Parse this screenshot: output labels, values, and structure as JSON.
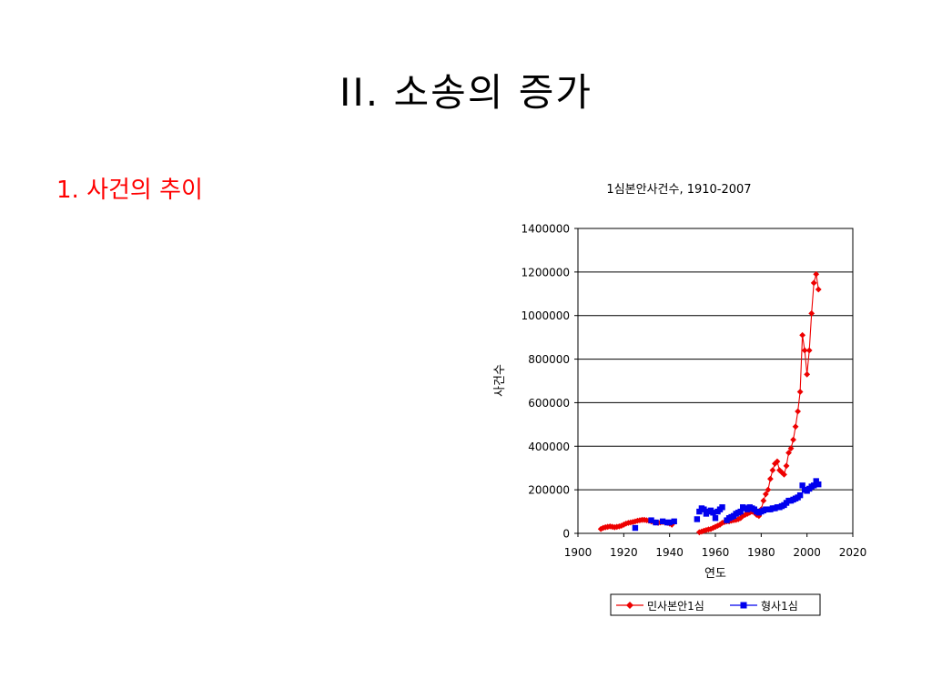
{
  "slide": {
    "title": "II. 소송의 증가",
    "heading": "1. 사건의 추이"
  },
  "colors": {
    "civil": "#ee0000",
    "criminal": "#0000ee",
    "heading": "#ff0000"
  },
  "chart_data": {
    "type": "line",
    "title": "1심본안사건수, 1910-2007",
    "xlabel": "연도",
    "ylabel": "사건수",
    "xlim": [
      1900,
      2020
    ],
    "ylim": [
      0,
      1400000
    ],
    "x_ticks": [
      1900,
      1920,
      1940,
      1960,
      1980,
      2000,
      2020
    ],
    "y_ticks": [
      0,
      200000,
      400000,
      600000,
      800000,
      1000000,
      1200000,
      1400000
    ],
    "grid": "horizontal",
    "legend_position": "bottom",
    "series": [
      {
        "name": "민사본안1심",
        "color": "#ee0000",
        "marker": "diamond",
        "line": true,
        "points": [
          [
            1910,
            20000
          ],
          [
            1911,
            25000
          ],
          [
            1912,
            28000
          ],
          [
            1913,
            30000
          ],
          [
            1914,
            32000
          ],
          [
            1915,
            30000
          ],
          [
            1916,
            28000
          ],
          [
            1917,
            30000
          ],
          [
            1918,
            32000
          ],
          [
            1919,
            35000
          ],
          [
            1920,
            40000
          ],
          [
            1921,
            45000
          ],
          [
            1922,
            48000
          ],
          [
            1923,
            50000
          ],
          [
            1924,
            52000
          ],
          [
            1925,
            55000
          ],
          [
            1926,
            58000
          ],
          [
            1927,
            60000
          ],
          [
            1928,
            62000
          ],
          [
            1929,
            62000
          ],
          [
            1930,
            60000
          ],
          [
            1931,
            58000
          ],
          [
            1932,
            55000
          ],
          [
            1933,
            52000
          ],
          [
            1934,
            50000
          ],
          [
            1935,
            48000
          ],
          [
            1936,
            50000
          ],
          [
            1937,
            52000
          ],
          [
            1938,
            50000
          ],
          [
            1939,
            48000
          ],
          [
            1940,
            45000
          ],
          [
            1941,
            40000
          ],
          [
            1953,
            5000
          ],
          [
            1954,
            8000
          ],
          [
            1955,
            12000
          ],
          [
            1956,
            15000
          ],
          [
            1957,
            18000
          ],
          [
            1958,
            20000
          ],
          [
            1959,
            25000
          ],
          [
            1960,
            30000
          ],
          [
            1961,
            35000
          ],
          [
            1962,
            40000
          ],
          [
            1963,
            48000
          ],
          [
            1964,
            52000
          ],
          [
            1965,
            55000
          ],
          [
            1966,
            55000
          ],
          [
            1967,
            58000
          ],
          [
            1968,
            60000
          ],
          [
            1969,
            62000
          ],
          [
            1970,
            65000
          ],
          [
            1971,
            70000
          ],
          [
            1972,
            80000
          ],
          [
            1973,
            85000
          ],
          [
            1974,
            90000
          ],
          [
            1975,
            95000
          ],
          [
            1976,
            100000
          ],
          [
            1977,
            95000
          ],
          [
            1978,
            85000
          ],
          [
            1979,
            80000
          ],
          [
            1980,
            110000
          ],
          [
            1981,
            150000
          ],
          [
            1982,
            180000
          ],
          [
            1983,
            200000
          ],
          [
            1984,
            250000
          ],
          [
            1985,
            290000
          ],
          [
            1986,
            320000
          ],
          [
            1987,
            330000
          ],
          [
            1988,
            290000
          ],
          [
            1989,
            280000
          ],
          [
            1990,
            270000
          ],
          [
            1991,
            310000
          ],
          [
            1992,
            370000
          ],
          [
            1993,
            390000
          ],
          [
            1994,
            430000
          ],
          [
            1995,
            490000
          ],
          [
            1996,
            560000
          ],
          [
            1997,
            650000
          ],
          [
            1998,
            910000
          ],
          [
            1999,
            840000
          ],
          [
            2000,
            730000
          ],
          [
            2001,
            840000
          ],
          [
            2002,
            1010000
          ],
          [
            2003,
            1150000
          ],
          [
            2004,
            1190000
          ],
          [
            2005,
            1120000
          ]
        ]
      },
      {
        "name": "형사1심",
        "color": "#0000ee",
        "marker": "square",
        "line": false,
        "points": [
          [
            1925,
            25000
          ],
          [
            1932,
            60000
          ],
          [
            1934,
            50000
          ],
          [
            1937,
            55000
          ],
          [
            1939,
            50000
          ],
          [
            1940,
            50000
          ],
          [
            1942,
            55000
          ],
          [
            1952,
            65000
          ],
          [
            1953,
            100000
          ],
          [
            1954,
            115000
          ],
          [
            1955,
            110000
          ],
          [
            1956,
            90000
          ],
          [
            1957,
            100000
          ],
          [
            1958,
            105000
          ],
          [
            1959,
            95000
          ],
          [
            1960,
            70000
          ],
          [
            1961,
            100000
          ],
          [
            1962,
            110000
          ],
          [
            1963,
            120000
          ],
          [
            1965,
            60000
          ],
          [
            1966,
            70000
          ],
          [
            1967,
            75000
          ],
          [
            1968,
            80000
          ],
          [
            1969,
            90000
          ],
          [
            1970,
            95000
          ],
          [
            1971,
            100000
          ],
          [
            1972,
            120000
          ],
          [
            1973,
            115000
          ],
          [
            1974,
            110000
          ],
          [
            1975,
            120000
          ],
          [
            1976,
            115000
          ],
          [
            1977,
            110000
          ],
          [
            1978,
            100000
          ],
          [
            1979,
            95000
          ],
          [
            1980,
            100000
          ],
          [
            1981,
            105000
          ],
          [
            1982,
            110000
          ],
          [
            1983,
            110000
          ],
          [
            1984,
            110000
          ],
          [
            1985,
            115000
          ],
          [
            1986,
            115000
          ],
          [
            1987,
            120000
          ],
          [
            1988,
            120000
          ],
          [
            1989,
            125000
          ],
          [
            1990,
            130000
          ],
          [
            1991,
            140000
          ],
          [
            1992,
            150000
          ],
          [
            1993,
            150000
          ],
          [
            1994,
            155000
          ],
          [
            1995,
            160000
          ],
          [
            1996,
            165000
          ],
          [
            1997,
            175000
          ],
          [
            1998,
            220000
          ],
          [
            1999,
            200000
          ],
          [
            2000,
            195000
          ],
          [
            2001,
            205000
          ],
          [
            2002,
            215000
          ],
          [
            2003,
            220000
          ],
          [
            2004,
            240000
          ],
          [
            2005,
            225000
          ]
        ]
      }
    ]
  }
}
